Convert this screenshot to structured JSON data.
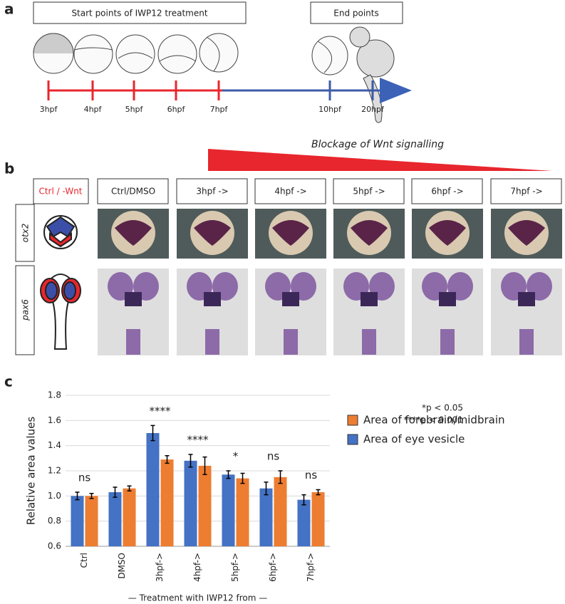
{
  "panel_labels": [
    "a",
    "b",
    "c"
  ],
  "panel_a": {
    "start_title": "Start points of IWP12 treatment",
    "end_title": "End points",
    "start_times": [
      "3hpf",
      "4hpf",
      "5hpf",
      "6hpf",
      "7hpf"
    ],
    "end_times": [
      "10hpf",
      "20hpf"
    ],
    "blockage": "Blockage of Wnt signalling"
  },
  "panel_b": {
    "legend_box": "Ctrl / -Wnt",
    "columns": [
      "Ctrl/DMSO",
      "3hpf ->",
      "4hpf ->",
      "5hpf ->",
      "6hpf ->",
      "7hpf ->"
    ],
    "rows": [
      "otx2",
      "pax6"
    ]
  },
  "chart_data": {
    "type": "bar",
    "ylabel": "Relative area values",
    "xlabel": "— Treatment with IWP12 from —",
    "categories": [
      "Ctrl",
      "DMSO",
      "3hpf->",
      "4hpf->",
      "5hpf->",
      "6hpf->",
      "7hpf->"
    ],
    "series": [
      {
        "name": "Area of eye vesicle",
        "color": "#4472c4",
        "values": [
          1.0,
          1.03,
          1.5,
          1.28,
          1.17,
          1.06,
          0.97
        ],
        "errors": [
          0.03,
          0.04,
          0.06,
          0.05,
          0.03,
          0.05,
          0.04
        ]
      },
      {
        "name": "Area of forebrain/midbrain",
        "color": "#ed7d31",
        "values": [
          1.0,
          1.06,
          1.29,
          1.24,
          1.14,
          1.15,
          1.03
        ],
        "errors": [
          0.02,
          0.02,
          0.03,
          0.07,
          0.04,
          0.05,
          0.02
        ]
      }
    ],
    "significance": [
      "ns",
      null,
      "****",
      "****",
      "*",
      "ns",
      "ns"
    ],
    "notes": [
      "*p < 0.05",
      "****p < 0.001"
    ],
    "ylim": [
      0.6,
      1.8
    ],
    "yticks": [
      0.6,
      0.8,
      {
        "value": 1,
        "label": "1.0"
      },
      1.2,
      1.4,
      1.6,
      1.8
    ],
    "grid": true
  }
}
